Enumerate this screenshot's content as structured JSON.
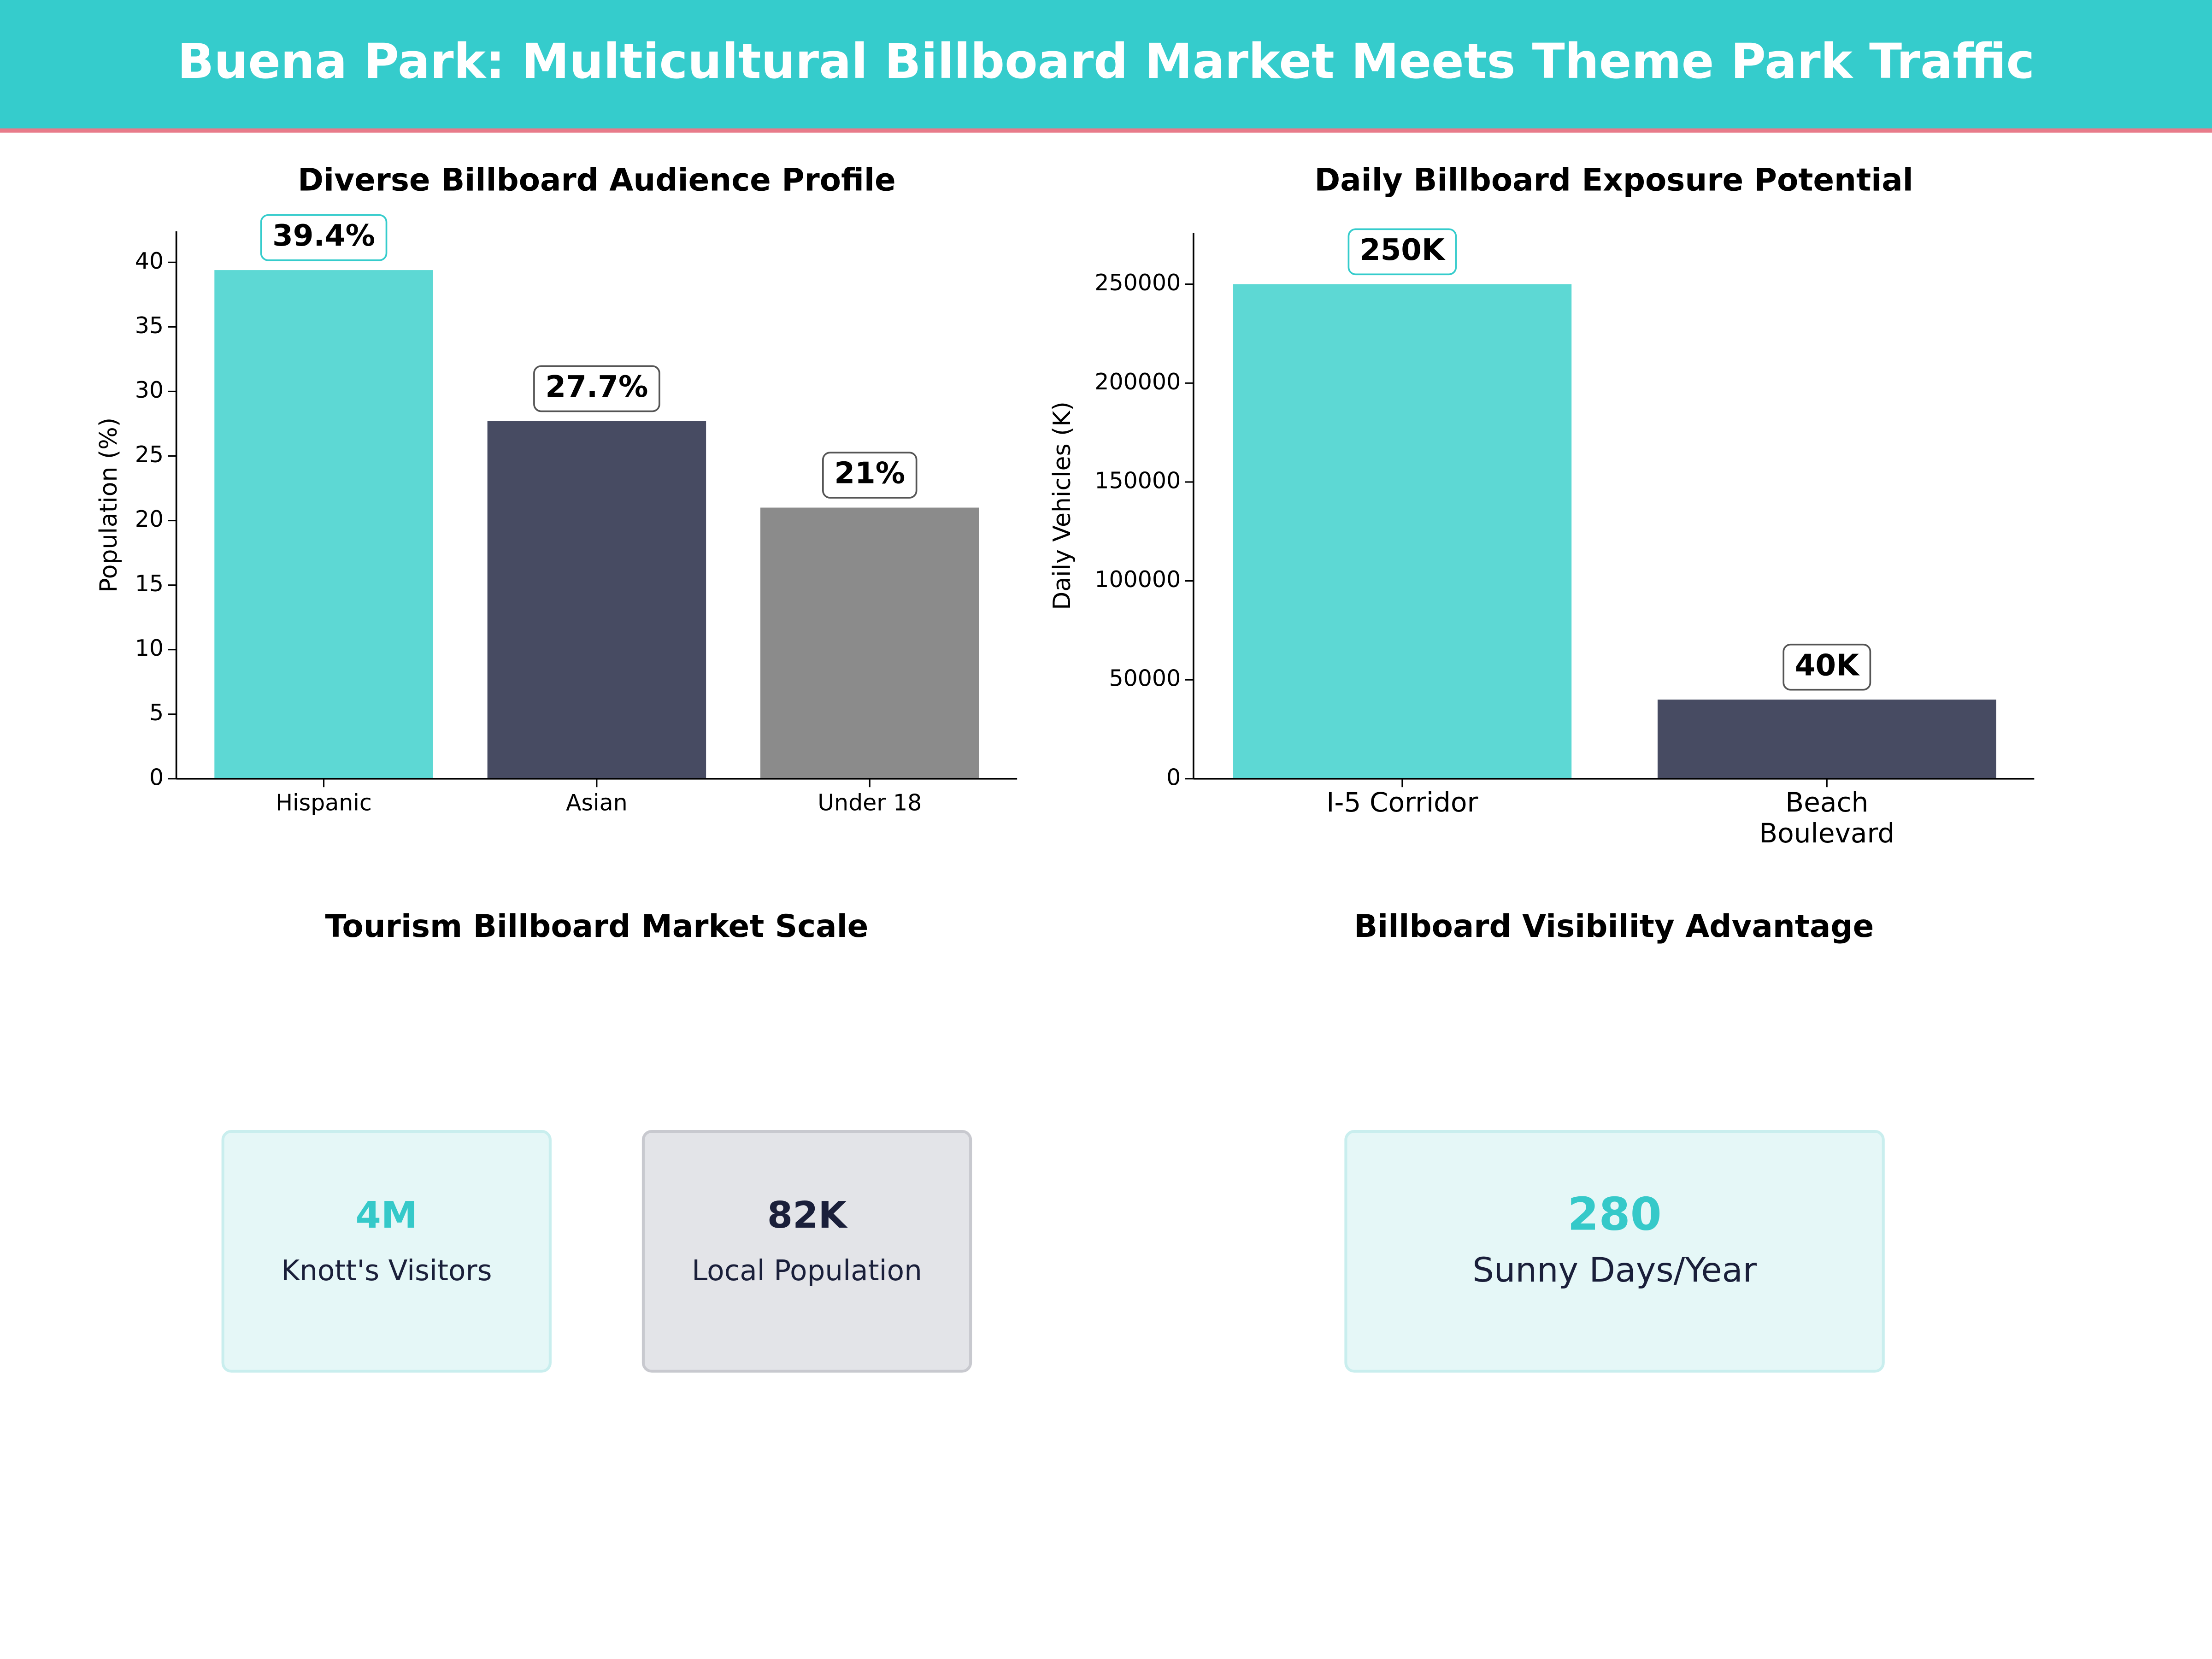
{
  "title": "Buena Park: Multicultural Billboard Market Meets Theme Park Traffic",
  "chart_data": [
    {
      "type": "bar",
      "title": "Diverse Billboard Audience Profile",
      "y_label": "Population (%)",
      "categories": [
        "Hispanic",
        "Asian",
        "Under 18"
      ],
      "values": [
        39.4,
        27.7,
        21
      ],
      "value_labels": [
        "39.4%",
        "27.7%",
        "21%"
      ],
      "colors": [
        "#5dd8d4",
        "#474b62",
        "#8b8b8b"
      ],
      "ylim": [
        0,
        42.4
      ],
      "yticks": [
        0,
        5,
        10,
        15,
        20,
        25,
        30,
        35,
        40
      ]
    },
    {
      "type": "bar",
      "title": "Daily Billboard Exposure Potential",
      "y_label": "Daily Vehicles (K)",
      "categories": [
        "I-5 Corridor",
        "Beach\nBoulevard"
      ],
      "values": [
        250000,
        40000
      ],
      "value_labels": [
        "250K",
        "40K"
      ],
      "colors": [
        "#5dd8d4",
        "#474b62"
      ],
      "ylim": [
        0,
        276000
      ],
      "yticks": [
        0,
        50000,
        100000,
        150000,
        200000,
        250000
      ]
    }
  ],
  "panels": [
    {
      "title": "Tourism Billboard Market Scale",
      "cards": [
        {
          "value": "4M",
          "label": "Knott's Visitors"
        },
        {
          "value": "82K",
          "label": "Local Population"
        }
      ]
    },
    {
      "title": "Billboard Visibility Advantage",
      "cards": [
        {
          "value": "280",
          "label": "Sunny Days/Year"
        }
      ]
    }
  ]
}
